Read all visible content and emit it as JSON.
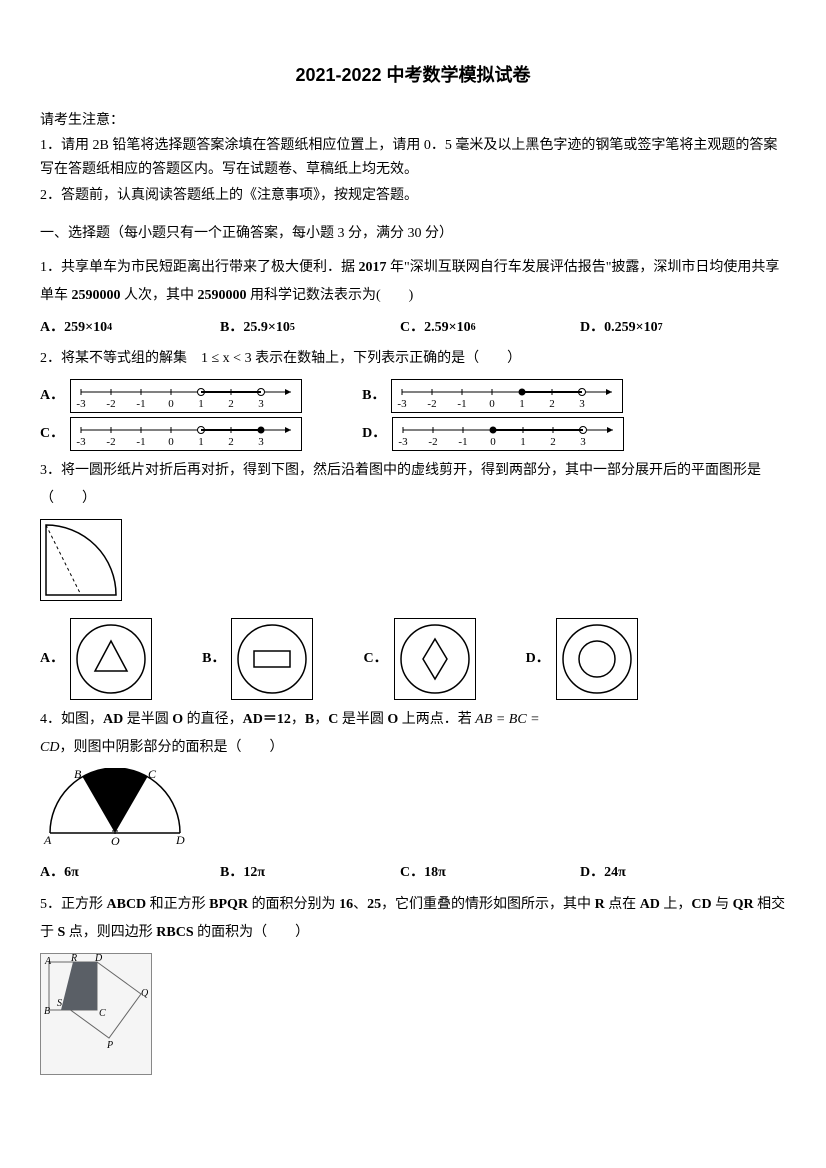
{
  "title": "2021-2022 中考数学模拟试卷",
  "notice_head": "请考生注意：",
  "notice": [
    "1．请用 2B 铅笔将选择题答案涂填在答题纸相应位置上，请用 0．5 毫米及以上黑色字迹的钢笔或签字笔将主观题的答案写在答题纸相应的答题区内。写在试题卷、草稿纸上均无效。",
    "2．答题前，认真阅读答题纸上的《注意事项》，按规定答题。"
  ],
  "section": "一、选择题（每小题只有一个正确答案，每小题 3 分，满分 30 分）",
  "q1": {
    "text_a": "1．共享单车为市民短距离出行带来了极大便利．据 ",
    "bold_a": "2017",
    "text_b": " 年\"深圳互联网自行车发展评估报告\"披露，深圳市日均使用共享单车 ",
    "bold_b": "2590000",
    "text_c": " 人次，其中 ",
    "bold_c": "2590000",
    "text_d": " 用科学记数法表示为(　　)",
    "options": [
      "A．259×10",
      "B．25.9×10",
      "C．2.59×10",
      "D．0.259×10"
    ],
    "exponents": [
      "4",
      "5",
      "6",
      "7"
    ]
  },
  "q2": {
    "text": "2．将某不等式组的解集　1 ≤ x < 3 表示在数轴上，下列表示正确的是（　　）",
    "labels": [
      "A．",
      "B．",
      "C．",
      "D．"
    ],
    "ticks": [
      "-3",
      "-2",
      "-1",
      "0",
      "1",
      "2",
      "3"
    ]
  },
  "q3": {
    "text": "3．将一圆形纸片对折后再对折，得到下图，然后沿着图中的虚线剪开，得到两部分，其中一部分展开后的平面图形是（　　）",
    "labels": [
      "A．",
      "B．",
      "C．",
      "D．"
    ]
  },
  "q4": {
    "text_a": "4．如图，",
    "bold_a": "AD",
    "text_b": " 是半圆 ",
    "bold_b": "O",
    "text_c": " 的直径，",
    "bold_c": "AD＝12",
    "text_d": "，",
    "bold_d": "B",
    "text_e": "，",
    "bold_e": "C",
    "text_f": " 是半圆 ",
    "bold_f": "O",
    "text_g": " 上两点．若 ",
    "math": "AB = BC = CD",
    "text_h": "，则图中阴影部分的面积是（　　）",
    "options": [
      "A．6π",
      "B．12π",
      "C．18π",
      "D．24π"
    ],
    "fig_labels": {
      "A": "A",
      "B": "B",
      "C": "C",
      "D": "D",
      "O": "O"
    }
  },
  "q5": {
    "text_a": "5．正方形 ",
    "bold_a": "ABCD",
    "text_b": " 和正方形 ",
    "bold_b": "BPQR",
    "text_c": " 的面积分别为 ",
    "bold_c": "16",
    "text_d": "、",
    "bold_d": "25",
    "text_e": "，它们重叠的情形如图所示，其中 ",
    "bold_e": "R",
    "text_f": " 点在 ",
    "bold_f": "AD",
    "text_g": " 上，",
    "bold_g": "CD",
    "text_h": " 与 ",
    "bold_h": "QR",
    "text_i": " 相交于 ",
    "bold_i": "S",
    "text_j": " 点，则四边形 ",
    "bold_j": "RBCS",
    "text_k": " 的面积为（　　）"
  },
  "colors": {
    "text": "#000000",
    "bg": "#ffffff",
    "line": "#000000",
    "shade": "#555555"
  }
}
